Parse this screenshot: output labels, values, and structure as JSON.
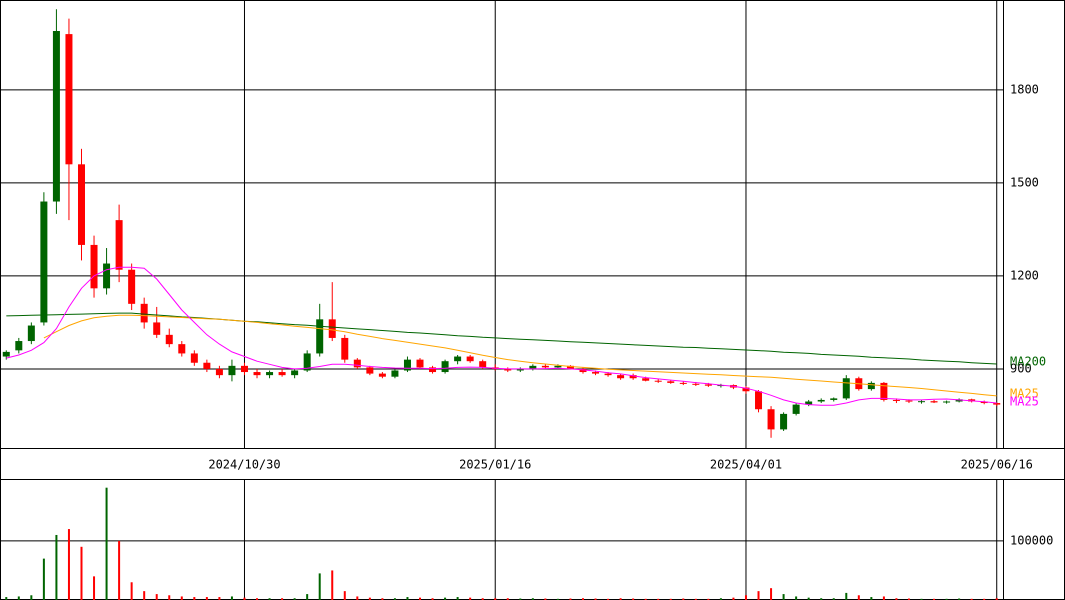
{
  "chart_data": {
    "type": "candlestick",
    "categories": [
      null,
      null,
      null,
      null,
      null,
      null,
      null,
      null,
      null,
      null,
      null,
      null,
      null,
      null,
      null,
      null,
      null,
      null,
      null,
      "2024/10/30",
      null,
      null,
      null,
      null,
      null,
      null,
      null,
      null,
      null,
      null,
      null,
      null,
      null,
      null,
      null,
      null,
      null,
      null,
      null,
      "2025/01/16",
      null,
      null,
      null,
      null,
      null,
      null,
      null,
      null,
      null,
      null,
      null,
      null,
      null,
      null,
      null,
      null,
      null,
      null,
      null,
      "2025/04/01",
      null,
      null,
      null,
      null,
      null,
      null,
      null,
      null,
      null,
      null,
      null,
      null,
      null,
      null,
      null,
      null,
      null,
      null,
      null,
      "2025/06/16"
    ],
    "open": [
      940,
      960,
      990,
      1050,
      1440,
      1980,
      1560,
      1300,
      1160,
      1380,
      1220,
      1110,
      1050,
      1010,
      980,
      950,
      920,
      900,
      880,
      910,
      890,
      880,
      890,
      880,
      895,
      950,
      1060,
      1000,
      930,
      905,
      885,
      875,
      895,
      930,
      905,
      890,
      925,
      940,
      925,
      905,
      900,
      895,
      900,
      910,
      905,
      910,
      900,
      890,
      885,
      880,
      880,
      870,
      862,
      860,
      855,
      852,
      850,
      846,
      848,
      840,
      828,
      770,
      705,
      755,
      785,
      795,
      800,
      805,
      870,
      835,
      855,
      800,
      798,
      795,
      796,
      792,
      795,
      802,
      795,
      790
    ],
    "high": [
      960,
      1000,
      1050,
      1470,
      2060,
      2030,
      1610,
      1330,
      1290,
      1430,
      1240,
      1130,
      1100,
      1030,
      990,
      960,
      930,
      910,
      930,
      920,
      900,
      895,
      900,
      900,
      960,
      1110,
      1180,
      1010,
      935,
      910,
      890,
      900,
      940,
      935,
      910,
      930,
      945,
      945,
      930,
      915,
      905,
      905,
      915,
      915,
      915,
      912,
      905,
      895,
      890,
      885,
      885,
      875,
      868,
      865,
      860,
      858,
      855,
      852,
      850,
      845,
      832,
      780,
      760,
      790,
      800,
      805,
      808,
      880,
      875,
      860,
      858,
      805,
      802,
      800,
      800,
      798,
      805,
      804,
      798,
      792
    ],
    "low": [
      930,
      950,
      980,
      1040,
      1400,
      1380,
      1250,
      1130,
      1140,
      1180,
      1090,
      1030,
      1000,
      970,
      940,
      910,
      890,
      870,
      860,
      880,
      870,
      870,
      875,
      870,
      890,
      940,
      990,
      920,
      900,
      880,
      870,
      870,
      890,
      900,
      885,
      885,
      915,
      920,
      900,
      895,
      890,
      890,
      895,
      900,
      900,
      898,
      885,
      880,
      875,
      865,
      865,
      860,
      855,
      852,
      848,
      845,
      842,
      840,
      835,
      820,
      760,
      678,
      700,
      750,
      780,
      790,
      795,
      800,
      830,
      830,
      795,
      790,
      790,
      788,
      790,
      788,
      792,
      792,
      786,
      780
    ],
    "close": [
      955,
      990,
      1040,
      1440,
      1990,
      1560,
      1300,
      1160,
      1240,
      1220,
      1110,
      1050,
      1010,
      980,
      950,
      920,
      900,
      880,
      910,
      890,
      880,
      890,
      880,
      895,
      950,
      1060,
      1000,
      930,
      905,
      885,
      875,
      895,
      930,
      905,
      890,
      925,
      940,
      925,
      905,
      900,
      895,
      900,
      910,
      905,
      910,
      900,
      890,
      885,
      880,
      870,
      870,
      862,
      860,
      855,
      852,
      850,
      846,
      848,
      840,
      828,
      770,
      705,
      755,
      785,
      795,
      800,
      805,
      870,
      835,
      855,
      800,
      798,
      795,
      796,
      792,
      795,
      802,
      795,
      790,
      785
    ],
    "volume": [
      5000,
      6000,
      8000,
      70000,
      110000,
      120000,
      90000,
      40000,
      190000,
      100000,
      30000,
      15000,
      10000,
      8000,
      6000,
      5000,
      5000,
      5000,
      6000,
      4000,
      3000,
      3000,
      3000,
      3000,
      10000,
      45000,
      50000,
      15000,
      6000,
      4000,
      3000,
      3000,
      5000,
      4000,
      3000,
      4000,
      5000,
      4000,
      3000,
      3000,
      3000,
      2500,
      3000,
      2500,
      2000,
      2500,
      3000,
      2500,
      2000,
      3000,
      2500,
      2000,
      2000,
      2000,
      2500,
      2000,
      2000,
      3000,
      4000,
      8000,
      15000,
      20000,
      10000,
      6000,
      4000,
      3000,
      3000,
      12000,
      8000,
      5000,
      6000,
      3000,
      2500,
      2000,
      2000,
      2000,
      2500,
      2000,
      2000,
      3000
    ],
    "up_color": "#006400",
    "down_color": "#ff0000",
    "series": [
      {
        "name": "MA200",
        "color": "#006400",
        "values": [
          1071,
          1072,
          1073,
          1074,
          1075,
          1076,
          1077,
          1078,
          1079,
          1080,
          1080,
          1077,
          1074,
          1071,
          1068,
          1066,
          1063,
          1060,
          1057,
          1054,
          1052,
          1049,
          1046,
          1043,
          1041,
          1038,
          1035,
          1032,
          1029,
          1027,
          1024,
          1021,
          1018,
          1016,
          1013,
          1010,
          1007,
          1005,
          1002,
          1000,
          998,
          996,
          994,
          992,
          990,
          988,
          986,
          984,
          982,
          980,
          978,
          976,
          974,
          972,
          970,
          969,
          967,
          965,
          963,
          961,
          959,
          957,
          954,
          952,
          950,
          947,
          945,
          943,
          941,
          938,
          936,
          934,
          932,
          929,
          927,
          925,
          923,
          920,
          918,
          916
        ]
      },
      {
        "name": "MA25",
        "color": "#ffa500",
        "values": [
          null,
          null,
          null,
          1000,
          1020,
          1040,
          1055,
          1065,
          1070,
          1073,
          1073,
          1072,
          1070,
          1068,
          1066,
          1064,
          1062,
          1060,
          1057,
          1054,
          1050,
          1046,
          1042,
          1038,
          1034,
          1030,
          1026,
          1020,
          1012,
          1005,
          998,
          992,
          986,
          980,
          974,
          968,
          960,
          952,
          944,
          937,
          930,
          925,
          920,
          916,
          912,
          908,
          905,
          902,
          899,
          897,
          895,
          893,
          891,
          889,
          887,
          885,
          883,
          881,
          879,
          877,
          875,
          873,
          870,
          867,
          864,
          861,
          858,
          855,
          852,
          849,
          846,
          843,
          840,
          837,
          833,
          829,
          825,
          821,
          817,
          813
        ]
      },
      {
        "name": "MA25",
        "color": "#ff00ff",
        "values": [
          935,
          945,
          960,
          985,
          1030,
          1100,
          1160,
          1200,
          1220,
          1228,
          1228,
          1225,
          1190,
          1140,
          1090,
          1050,
          1010,
          980,
          955,
          940,
          925,
          915,
          905,
          900,
          902,
          908,
          915,
          915,
          912,
          908,
          905,
          903,
          902,
          902,
          901,
          902,
          905,
          906,
          905,
          902,
          900,
          900,
          900,
          901,
          902,
          900,
          897,
          893,
          888,
          884,
          878,
          872,
          868,
          864,
          860,
          856,
          852,
          848,
          844,
          838,
          828,
          815,
          800,
          790,
          785,
          783,
          783,
          790,
          800,
          805,
          805,
          803,
          800,
          800,
          802,
          803,
          800,
          797,
          794,
          790
        ]
      }
    ],
    "ylim": [
      645,
      2090
    ],
    "yticks": [
      900,
      1200,
      1500,
      1800
    ],
    "volume_ylim": [
      0,
      203000
    ],
    "volume_yticks": [
      100000
    ],
    "grid": true
  }
}
